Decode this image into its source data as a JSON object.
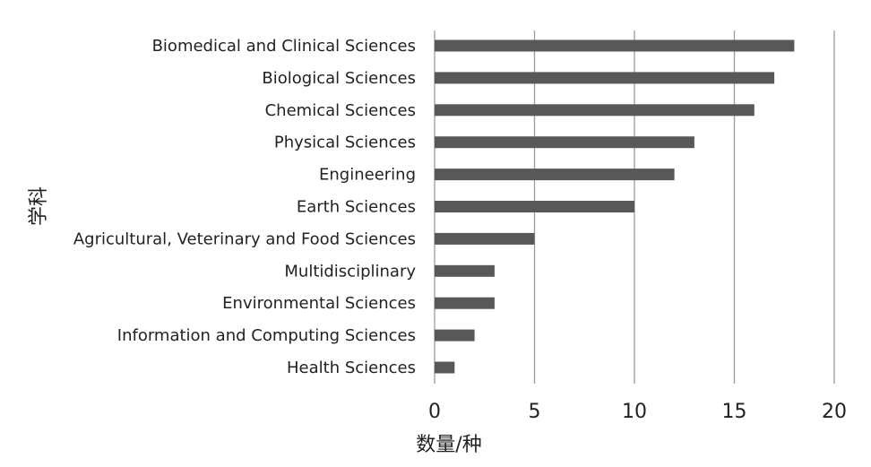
{
  "chart_data": {
    "type": "bar",
    "orientation": "horizontal",
    "categories": [
      "Biomedical and Clinical Sciences",
      "Biological Sciences",
      "Chemical Sciences",
      "Physical Sciences",
      "Engineering",
      "Earth Sciences",
      "Agricultural, Veterinary and Food  Sciences",
      "Multidisciplinary",
      "Environmental Sciences",
      "Information and Computing Sciences",
      "Health Sciences"
    ],
    "values": [
      18,
      17,
      16,
      13,
      12,
      10,
      5,
      3,
      3,
      2,
      1
    ],
    "xlabel": "数量/种",
    "ylabel": "学科",
    "xlim": [
      0,
      20
    ],
    "xticks": [
      0,
      5,
      10,
      15,
      20
    ],
    "grid": "vertical",
    "legend": "none",
    "colors": {
      "bar": "#58585b",
      "grid": "#9a9a9a"
    }
  }
}
